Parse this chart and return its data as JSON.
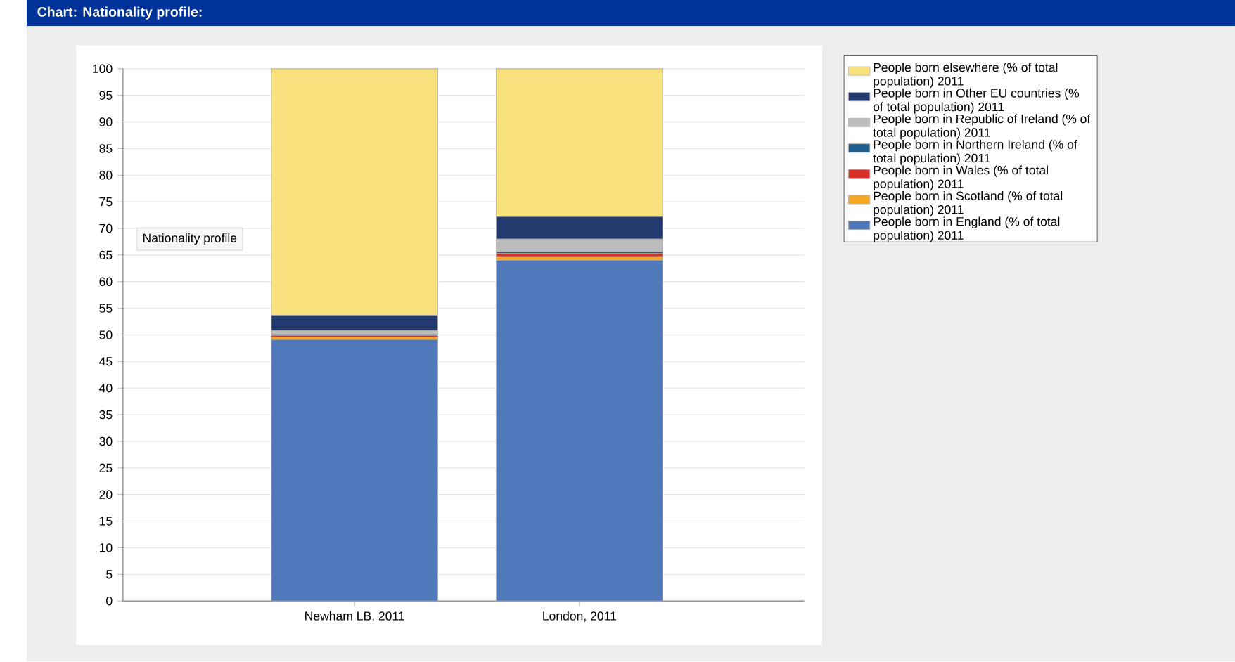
{
  "chart_data": {
    "type": "bar",
    "stacked": true,
    "title": "Chart: Nationality profile:",
    "categories": [
      "Newham LB, 2011",
      "London, 2011"
    ],
    "series": [
      {
        "name": "People born in England (% of total population) 2011",
        "color": "#4f78bb",
        "values": [
          49.1,
          64.0
        ]
      },
      {
        "name": "People born in Scotland (% of total population) 2011",
        "color": "#f5a623",
        "values": [
          0.5,
          0.7
        ]
      },
      {
        "name": "People born in Wales (% of total population) 2011",
        "color": "#d9312a",
        "values": [
          0.3,
          0.6
        ]
      },
      {
        "name": "People born in Northern Ireland (% of total population) 2011",
        "color": "#1f5f8f",
        "values": [
          0.2,
          0.3
        ]
      },
      {
        "name": "People born in Republic of Ireland (% of total population) 2011",
        "color": "#bdbdbd",
        "values": [
          0.7,
          2.4
        ]
      },
      {
        "name": "People born in Other EU countries (% of total population) 2011",
        "color": "#233a6e",
        "values": [
          2.9,
          4.2
        ]
      },
      {
        "name": "People born elsewhere (% of total population) 2011",
        "color": "#f9e17d",
        "values": [
          46.3,
          27.8
        ]
      }
    ],
    "ylim": [
      0,
      100
    ],
    "yticks": [
      0,
      5,
      10,
      15,
      20,
      25,
      30,
      35,
      40,
      45,
      50,
      55,
      60,
      65,
      70,
      75,
      80,
      85,
      90,
      95,
      100
    ],
    "grid": "y",
    "legend": "right",
    "annotations": [
      "Nationality profile"
    ]
  }
}
